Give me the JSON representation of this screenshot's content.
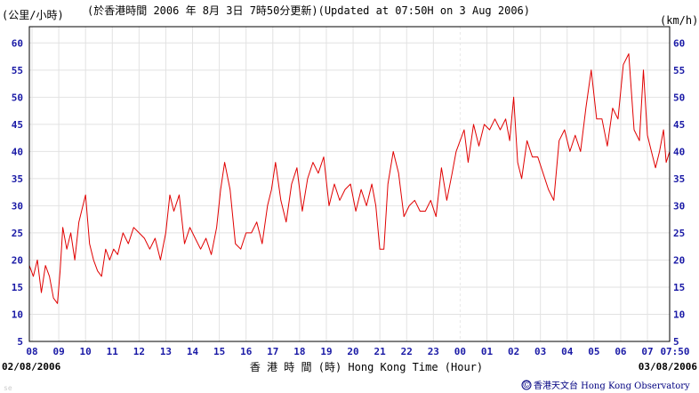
{
  "header": {
    "unit_left": "(公里/小時)",
    "title": "(於香港時間 2006 年 8月 3日 7時50分更新)(Updated at 07:50H on 3 Aug 2006)",
    "unit_right": "(km/h)"
  },
  "footer": {
    "start_date": "02/08/2006",
    "end_date": "03/08/2006",
    "xlabel": "香 港 時 間 (時) Hong Kong Time (Hour)",
    "credit_symbol": "©",
    "credit": "香港天文台 Hong Kong Observatory",
    "corner_mark": "se"
  },
  "colors": {
    "line": "#e00000",
    "grid": "#e2e2e2",
    "axis": "#000000",
    "tick_text": "#1a1aa6",
    "midnight_marker": "#e8e8e8"
  },
  "chart_data": {
    "type": "line",
    "title": "",
    "xlabel": "香 港 時 間 (時) Hong Kong Time (Hour)",
    "ylabel": "(km/h)",
    "ylim": [
      5,
      63
    ],
    "xlim_hours": [
      7.9,
      31.83
    ],
    "grid": true,
    "y_ticks": [
      5,
      10,
      15,
      20,
      25,
      30,
      35,
      40,
      45,
      50,
      55,
      60
    ],
    "x_tick_hours": [
      8,
      9,
      10,
      11,
      12,
      13,
      14,
      15,
      16,
      17,
      18,
      19,
      20,
      21,
      22,
      23,
      24,
      25,
      26,
      27,
      28,
      29,
      30,
      31
    ],
    "x_tick_labels": [
      "08",
      "09",
      "10",
      "11",
      "12",
      "13",
      "14",
      "15",
      "16",
      "17",
      "18",
      "19",
      "20",
      "21",
      "22",
      "23",
      "00",
      "01",
      "02",
      "03",
      "04",
      "05",
      "06",
      "07",
      "07:50"
    ],
    "series": [
      {
        "x_hours": [
          7.9,
          8.05,
          8.2,
          8.35,
          8.5,
          8.65,
          8.8,
          8.95,
          9.05,
          9.15,
          9.3,
          9.45,
          9.6,
          9.75,
          9.9,
          10.0,
          10.15,
          10.3,
          10.45,
          10.6,
          10.75,
          10.9,
          11.05,
          11.2,
          11.4,
          11.6,
          11.8,
          12.0,
          12.2,
          12.4,
          12.6,
          12.8,
          13.0,
          13.15,
          13.3,
          13.5,
          13.7,
          13.9,
          14.1,
          14.3,
          14.5,
          14.7,
          14.9,
          15.05,
          15.2,
          15.4,
          15.6,
          15.8,
          16.0,
          16.2,
          16.4,
          16.6,
          16.8,
          16.95,
          17.1,
          17.3,
          17.5,
          17.7,
          17.9,
          18.1,
          18.3,
          18.5,
          18.7,
          18.9,
          19.1,
          19.3,
          19.5,
          19.7,
          19.9,
          20.1,
          20.3,
          20.5,
          20.7,
          20.85,
          21.0,
          21.15,
          21.3,
          21.5,
          21.7,
          21.9,
          22.1,
          22.3,
          22.5,
          22.7,
          22.9,
          23.1,
          23.3,
          23.5,
          23.7,
          23.85,
          24.0,
          24.15,
          24.3,
          24.5,
          24.7,
          24.9,
          25.1,
          25.3,
          25.5,
          25.7,
          25.85,
          26.0,
          26.15,
          26.3,
          26.5,
          26.7,
          26.9,
          27.1,
          27.3,
          27.5,
          27.7,
          27.9,
          28.1,
          28.3,
          28.5,
          28.7,
          28.9,
          29.1,
          29.3,
          29.5,
          29.7,
          29.9,
          30.1,
          30.3,
          30.5,
          30.7,
          30.85,
          31.0,
          31.15,
          31.3,
          31.45,
          31.6,
          31.7,
          31.83
        ],
        "y": [
          19,
          17,
          20,
          14,
          19,
          17,
          13,
          12,
          18,
          26,
          22,
          25,
          20,
          27,
          30,
          32,
          23,
          20,
          18,
          17,
          22,
          20,
          22,
          21,
          25,
          23,
          26,
          25,
          24,
          22,
          24,
          20,
          25,
          32,
          29,
          32,
          23,
          26,
          24,
          22,
          24,
          21,
          26,
          33,
          38,
          33,
          23,
          22,
          25,
          25,
          27,
          23,
          30,
          33,
          38,
          31,
          27,
          34,
          37,
          29,
          35,
          38,
          36,
          39,
          30,
          34,
          31,
          33,
          34,
          29,
          33,
          30,
          34,
          30,
          22,
          22,
          34,
          40,
          36,
          28,
          30,
          31,
          29,
          29,
          31,
          28,
          37,
          31,
          36,
          40,
          42,
          44,
          38,
          45,
          41,
          45,
          44,
          46,
          44,
          46,
          42,
          50,
          38,
          35,
          42,
          39,
          39,
          36,
          33,
          31,
          42,
          44,
          40,
          43,
          40,
          48,
          55,
          46,
          46,
          41,
          48,
          46,
          56,
          58,
          44,
          42,
          55,
          43,
          40,
          37,
          40,
          44,
          38,
          40
        ]
      }
    ]
  }
}
